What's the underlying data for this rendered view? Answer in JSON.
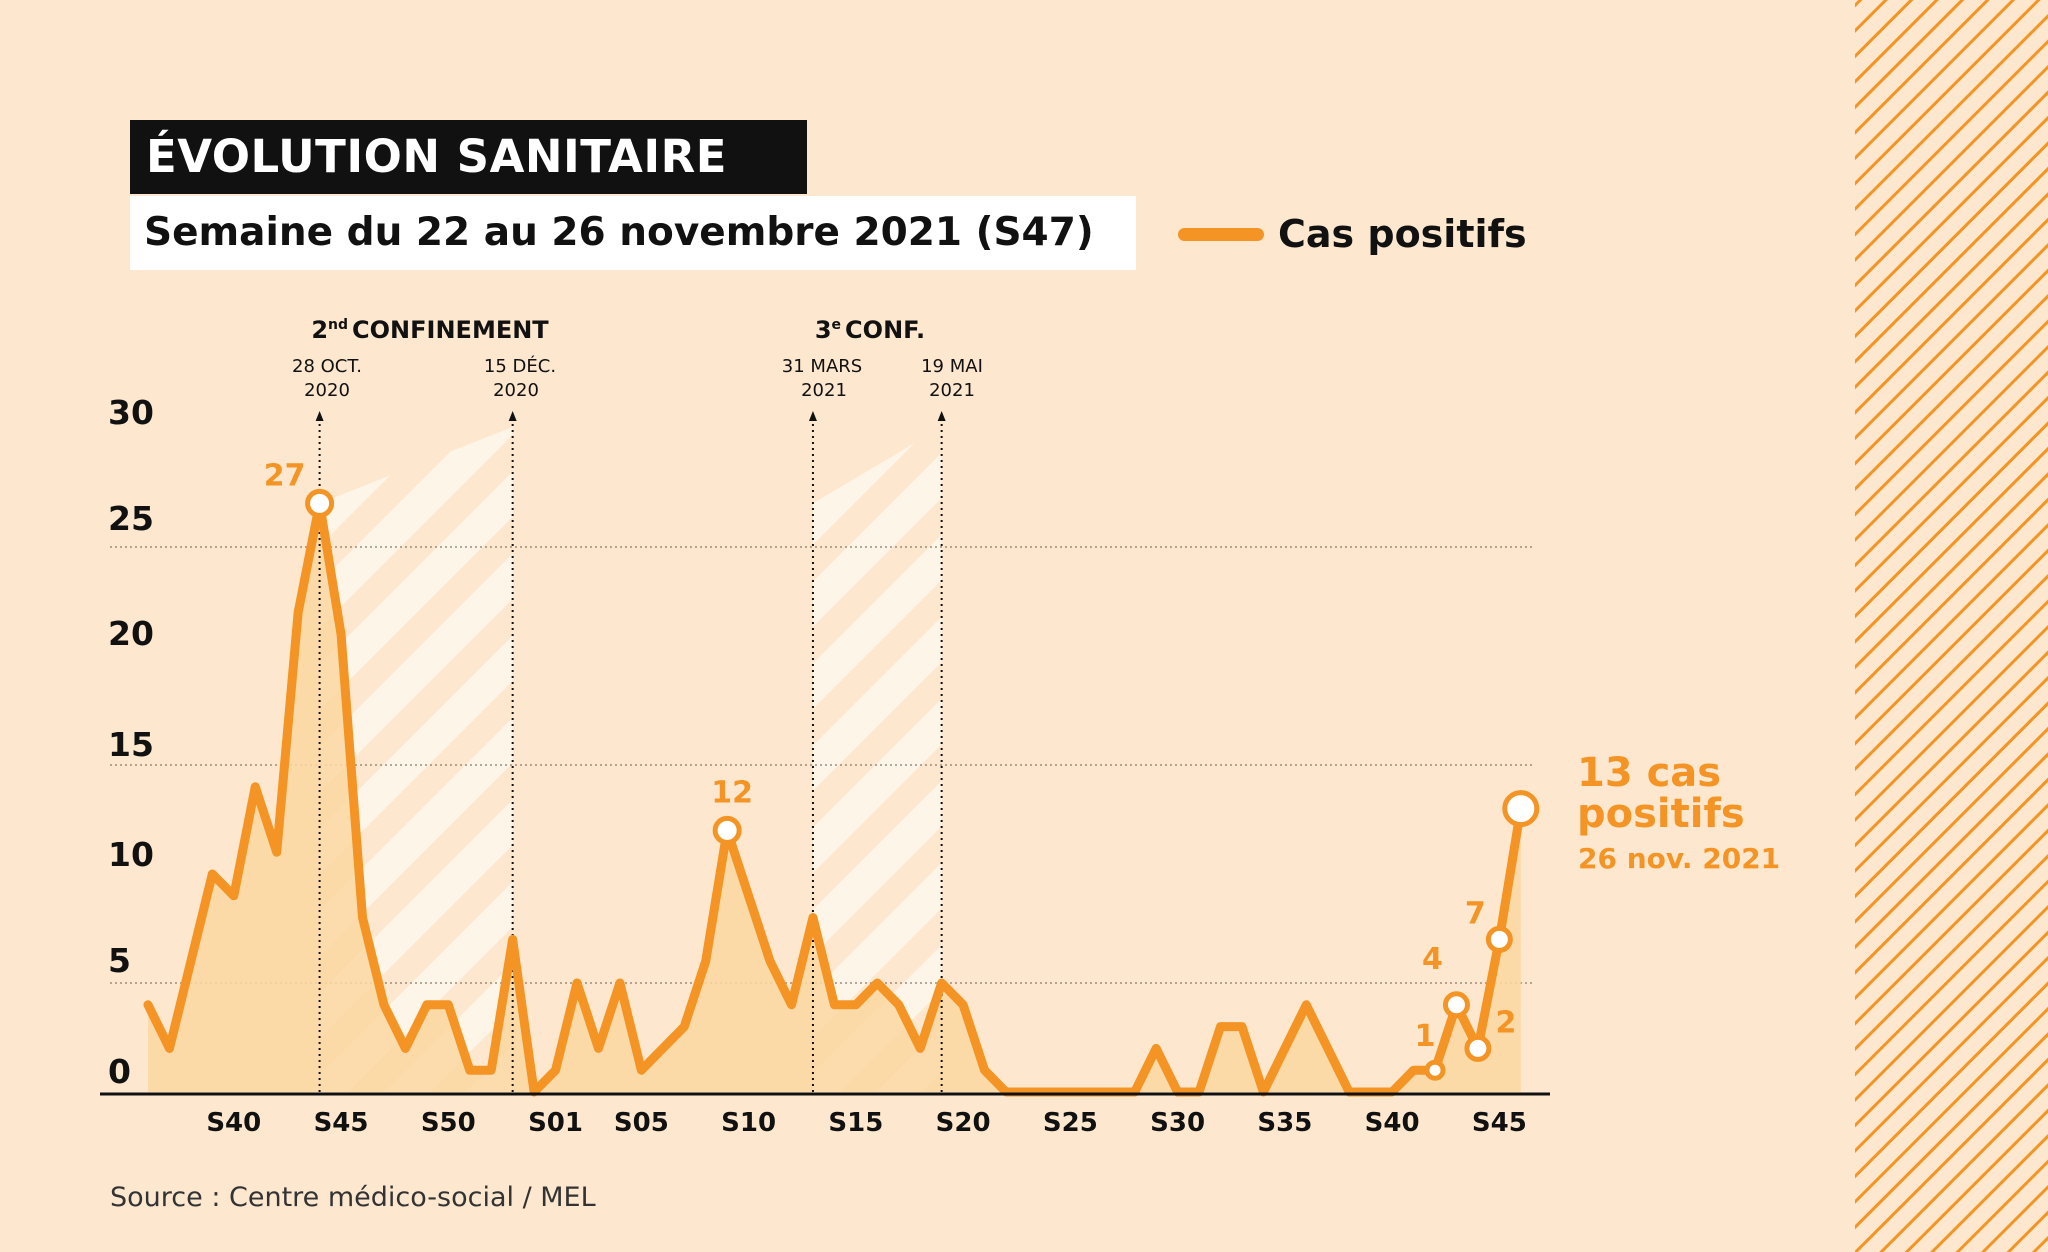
{
  "header": {
    "title": "ÉVOLUTION SANITAIRE",
    "subtitle": "Semaine du 22 au 26 novembre 2021 (S47)"
  },
  "legend": {
    "label": "Cas positifs"
  },
  "source": "Source : Centre médico-social / MEL",
  "colors": {
    "line": "#f39425",
    "fill": "#fbd7a1",
    "background": "#fde8cf",
    "text": "#111111"
  },
  "events": {
    "confinement2": {
      "title_base": "2",
      "title_sup": "nd",
      "title_rest": "CONFINEMENT"
    },
    "confinement3": {
      "title_base": "3",
      "title_sup": "e",
      "title_rest": "CONF."
    },
    "start2": {
      "line1": "28 OCT.",
      "line2": "2020"
    },
    "end2": {
      "line1": "15 DÉC.",
      "line2": "2020"
    },
    "start3": {
      "line1": "31 MARS",
      "line2": "2021"
    },
    "end3": {
      "line1": "19 MAI",
      "line2": "2021"
    }
  },
  "callout": {
    "line1": "13 cas",
    "line2": "positifs",
    "date": "26 nov. 2021"
  },
  "chart_data": {
    "type": "line",
    "title": "ÉVOLUTION SANITAIRE",
    "subtitle": "Semaine du 22 au 26 novembre 2021 (S47)",
    "xlabel": "",
    "ylabel": "",
    "ylim": [
      0,
      30
    ],
    "y_ticks": [
      0,
      5,
      10,
      15,
      20,
      25,
      30
    ],
    "x_tick_labels": [
      "S40",
      "S45",
      "S50",
      "S01",
      "S05",
      "S10",
      "S15",
      "S20",
      "S25",
      "S30",
      "S35",
      "S40",
      "S45"
    ],
    "x_tick_positions": [
      4,
      9,
      14,
      19,
      23,
      28,
      33,
      38,
      43,
      48,
      53,
      58,
      63
    ],
    "grid": "dotted horizontal lines at 5, 15, 25",
    "legend_position": "top-right",
    "series": [
      {
        "name": "Cas positifs",
        "values": [
          4,
          2,
          6,
          10,
          9,
          14,
          11,
          22,
          27,
          21,
          8,
          4,
          2,
          4,
          4,
          1,
          1,
          7,
          0,
          1,
          5,
          2,
          5,
          1,
          2,
          3,
          6,
          12,
          9,
          6,
          4,
          8,
          4,
          4,
          5,
          4,
          2,
          5,
          4,
          1,
          0,
          0,
          0,
          0,
          0,
          0,
          0,
          2,
          0,
          0,
          3,
          3,
          0,
          2,
          4,
          2,
          0,
          0,
          0,
          1,
          1,
          4,
          2,
          7,
          13
        ]
      }
    ],
    "annotations": [
      {
        "index": 8,
        "value": 27,
        "label": "27"
      },
      {
        "index": 27,
        "value": 12,
        "label": "12"
      },
      {
        "index": 60,
        "value": 1,
        "label": "1"
      },
      {
        "index": 61,
        "value": 4,
        "label": "4"
      },
      {
        "index": 62,
        "value": 2,
        "label": "2"
      },
      {
        "index": 63,
        "value": 7,
        "label": "7"
      },
      {
        "index": 64,
        "value": 13,
        "label": "13 cas positifs",
        "date": "26 nov. 2021"
      }
    ],
    "events": [
      {
        "label": "28 OCT. 2020",
        "index": 8
      },
      {
        "label": "15 DÉC. 2020",
        "index": 17
      },
      {
        "label": "31 MARS 2021",
        "index": 31
      },
      {
        "label": "19 MAI 2021",
        "index": 37
      }
    ]
  }
}
